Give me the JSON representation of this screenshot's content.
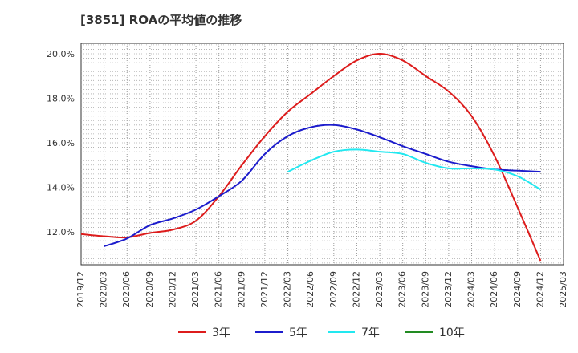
{
  "title": "[3851]  ROAの平均値の推移",
  "chart_data": {
    "type": "line",
    "title": "[3851]  ROAの平均値の推移",
    "xlabel": "",
    "ylabel": "",
    "x": [
      "2019/12",
      "2020/03",
      "2020/06",
      "2020/09",
      "2020/12",
      "2021/03",
      "2021/06",
      "2021/09",
      "2021/12",
      "2022/03",
      "2022/06",
      "2022/09",
      "2022/12",
      "2023/03",
      "2023/06",
      "2023/09",
      "2023/12",
      "2024/03",
      "2024/06",
      "2024/09",
      "2024/12",
      "2025/03"
    ],
    "yticks": [
      "12.0%",
      "14.0%",
      "16.0%",
      "18.0%",
      "20.0%"
    ],
    "ylim": [
      10.6,
      20.5
    ],
    "grid": true,
    "legend_position": "bottom",
    "series": [
      {
        "name": "3年",
        "color": "#dd1c1c",
        "values": [
          11.9,
          11.8,
          11.75,
          11.95,
          12.1,
          12.5,
          13.6,
          15.0,
          16.3,
          17.4,
          18.2,
          19.0,
          19.7,
          20.0,
          19.7,
          19.0,
          18.3,
          17.2,
          15.4,
          13.1,
          10.7,
          null
        ]
      },
      {
        "name": "5年",
        "color": "#1c1ccc",
        "values": [
          null,
          11.35,
          11.7,
          12.3,
          12.6,
          13.0,
          13.6,
          14.3,
          15.5,
          16.3,
          16.7,
          16.8,
          16.6,
          16.25,
          15.85,
          15.5,
          15.15,
          14.95,
          14.8,
          14.75,
          14.7,
          null
        ]
      },
      {
        "name": "7年",
        "color": "#22e8f0",
        "values": [
          null,
          null,
          null,
          null,
          null,
          null,
          null,
          null,
          null,
          14.7,
          15.2,
          15.6,
          15.7,
          15.6,
          15.5,
          15.1,
          14.85,
          14.85,
          14.8,
          14.5,
          13.9,
          null
        ]
      },
      {
        "name": "10年",
        "color": "#228b22",
        "values": [
          null,
          null,
          null,
          null,
          null,
          null,
          null,
          null,
          null,
          null,
          null,
          null,
          null,
          null,
          null,
          null,
          null,
          null,
          null,
          null,
          null,
          null
        ]
      }
    ]
  }
}
